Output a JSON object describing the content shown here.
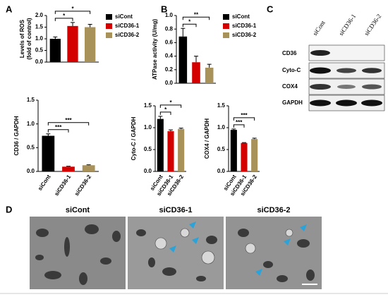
{
  "panel_labels": [
    "A",
    "B",
    "C",
    "D"
  ],
  "chart_data": [
    {
      "type": "bar",
      "ylabel": [
        "Levels of ROS",
        "(fold of control)"
      ],
      "categories": [
        "siCont",
        "siCD36-1",
        "siCD36-2"
      ],
      "values": [
        1.0,
        1.55,
        1.5
      ],
      "errors": [
        0.08,
        0.15,
        0.12
      ],
      "colors": [
        "#000000",
        "#d40000",
        "#a8925a"
      ],
      "ylim": [
        0,
        2
      ],
      "yticks": [
        {
          "value": 0,
          "label": "0.0"
        },
        0.5,
        {
          "value": 1,
          "label": "1.0"
        },
        1.5,
        {
          "value": 2,
          "label": "2.0"
        }
      ],
      "legend": "right",
      "annotations": [
        "*",
        "*"
      ]
    },
    {
      "type": "bar",
      "ylabel": "ATPase activity (U/mg)",
      "categories": [
        "siCont",
        "siCD36-1",
        "siCD36-2"
      ],
      "values": [
        0.69,
        0.31,
        0.23
      ],
      "errors": [
        0.12,
        0.09,
        0.05
      ],
      "colors": [
        "#000000",
        "#d40000",
        "#a8925a"
      ],
      "ylim": [
        0,
        1
      ],
      "yticks": [
        {
          "value": 0,
          "label": "0.0"
        },
        0.2,
        0.4,
        0.6,
        0.8,
        {
          "value": 1,
          "label": "1.0"
        }
      ],
      "legend": "right",
      "annotations": [
        "*",
        "**"
      ]
    },
    {
      "type": "bar",
      "ylabel": "CD36 / GAPDH",
      "categories": [
        "siCont",
        "siCD36-1",
        "siCD36-2"
      ],
      "values": [
        0.75,
        0.1,
        0.13
      ],
      "errors": [
        0.04,
        0.01,
        0.01
      ],
      "colors": [
        "#000000",
        "#d40000",
        "#a8925a"
      ],
      "ylim": [
        0,
        1.5
      ],
      "yticks": [
        {
          "value": 0,
          "label": "0.0"
        },
        0.5,
        {
          "value": 1,
          "label": "1.0"
        },
        1.5
      ],
      "annotations": [
        "***",
        "***"
      ]
    },
    {
      "type": "bar",
      "ylabel": "Cyto-C / GAPDH",
      "categories": [
        "siCont",
        "siCD36-1",
        "siCD36-2"
      ],
      "values": [
        1.2,
        0.92,
        0.97
      ],
      "errors": [
        0.06,
        0.03,
        0.02
      ],
      "colors": [
        "#000000",
        "#d40000",
        "#a8925a"
      ],
      "ylim": [
        0,
        1.5
      ],
      "yticks": [
        {
          "value": 0,
          "label": "0.0"
        },
        0.5,
        {
          "value": 1,
          "label": "1.0"
        },
        1.5
      ],
      "annotations": [
        "*",
        "*"
      ]
    },
    {
      "type": "bar",
      "ylabel": "COX4 / GAPDH",
      "categories": [
        "siCont",
        "siCD36-1",
        "siCD36-2"
      ],
      "values": [
        0.95,
        0.65,
        0.74
      ],
      "errors": [
        0.02,
        0.01,
        0.02
      ],
      "colors": [
        "#000000",
        "#d40000",
        "#a8925a"
      ],
      "ylim": [
        0,
        1.5
      ],
      "yticks": [
        {
          "value": 0,
          "label": "0.0"
        },
        0.5,
        {
          "value": 1,
          "label": "1.0"
        },
        1.5
      ],
      "annotations": [
        "***",
        "***"
      ]
    }
  ],
  "blot": {
    "lanes": [
      "siCont",
      "siCD36-1",
      "siCD36-2"
    ],
    "rows": [
      "CD36",
      "Cyto-C",
      "COX4",
      "GAPDH"
    ]
  },
  "micrographs": {
    "labels": [
      "siCont",
      "siCD36-1",
      "siCD36-2"
    ]
  }
}
